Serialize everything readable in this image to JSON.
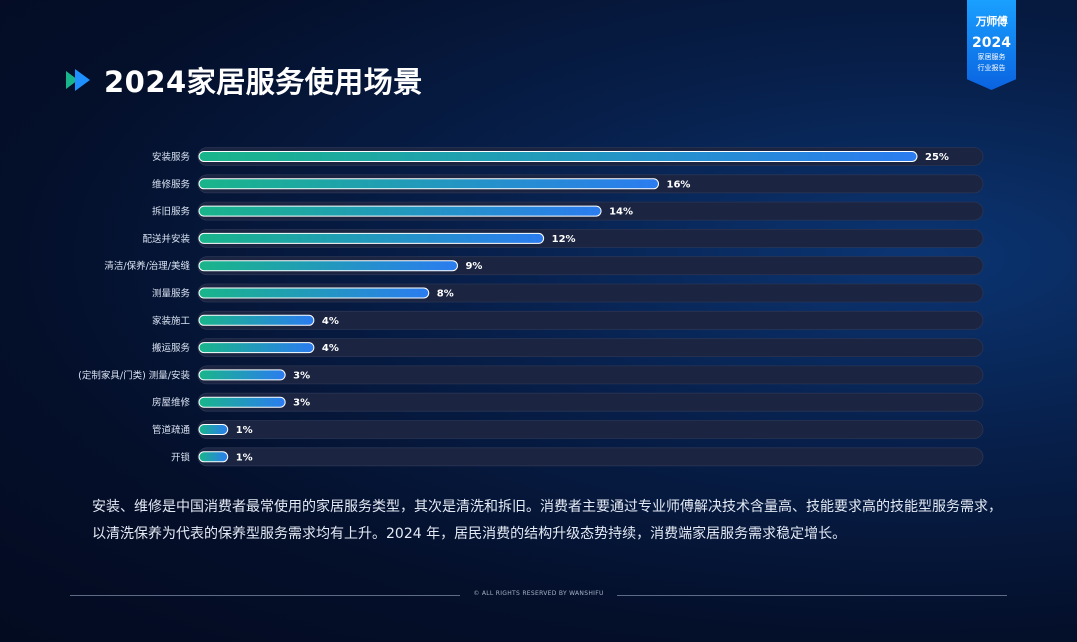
{
  "header": {
    "title": "2024家居服务使用场景"
  },
  "badge": {
    "brand": "万师傅",
    "year": "2024",
    "subtitle_line1": "家居服务",
    "subtitle_line2": "行业报告"
  },
  "colors": {
    "bar_start": "#19b58a",
    "bar_end": "#2b7cf0",
    "track": "#1b2440",
    "accent": "#1e90ff"
  },
  "chart_data": {
    "type": "bar",
    "orientation": "horizontal",
    "categories": [
      "安装服务",
      "维修服务",
      "拆旧服务",
      "配送并安装",
      "清洁/保养/治理/美缝",
      "测量服务",
      "家装施工",
      "搬运服务",
      "(定制家具/门类) 测量/安装",
      "房屋维修",
      "管道疏通",
      "开锁"
    ],
    "values": [
      25,
      16,
      14,
      12,
      9,
      8,
      4,
      4,
      3,
      3,
      1,
      1
    ],
    "value_labels": [
      "25%",
      "16%",
      "14%",
      "12%",
      "9%",
      "8%",
      "4%",
      "4%",
      "3%",
      "3%",
      "1%",
      "1%"
    ],
    "unit": "%",
    "xlim": [
      0,
      27
    ]
  },
  "summary": {
    "text": "安装、维修是中国消费者最常使用的家居服务类型，其次是清洗和拆旧。消费者主要通过专业师傅解决技术含量高、技能要求高的技能型服务需求，以清洗保养为代表的保养型服务需求均有上升。2024 年，居民消费的结构升级态势持续，消费端家居服务需求稳定增长。"
  },
  "footer": {
    "text": "© ALL RIGHTS RESERVED BY WANSHIFU"
  }
}
